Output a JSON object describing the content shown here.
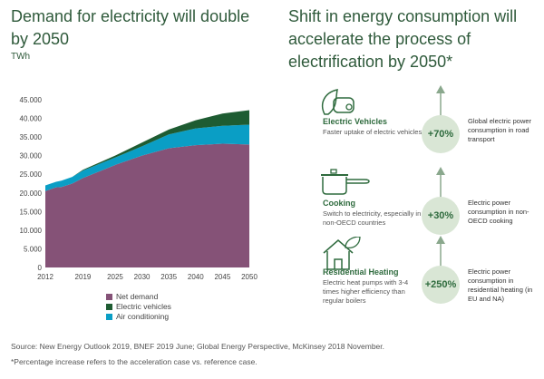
{
  "left_title": "Demand for electricity will double by 2050",
  "unit": "TWh",
  "right_title": "Shift in energy consumption will accelerate the process of electrification by 2050*",
  "chart_data": {
    "type": "area",
    "stacked": true,
    "title": "Demand for electricity will double by 2050",
    "ylabel": "TWh",
    "ylim": [
      0,
      45000
    ],
    "xlim": [
      2012,
      2050
    ],
    "y_ticks": [
      "0",
      "5.000",
      "10.000",
      "15.000",
      "20.000",
      "25.000",
      "30.000",
      "35.000",
      "40.000",
      "45.000"
    ],
    "x_ticks": [
      "2012",
      "2019",
      "2025",
      "2030",
      "2035",
      "2040",
      "2045",
      "2050"
    ],
    "grid": false,
    "legend": "bottom",
    "x": [
      2012,
      2014,
      2015,
      2017,
      2019,
      2025,
      2030,
      2035,
      2040,
      2045,
      2050
    ],
    "series": [
      {
        "name": "Net demand",
        "color": "#855277",
        "values": [
          20500,
          21500,
          21600,
          22500,
          24000,
          27500,
          30000,
          32000,
          32800,
          33200,
          33000
        ]
      },
      {
        "name": "Air conditioning",
        "color": "#0a9ec5",
        "values": [
          1500,
          1500,
          1700,
          1800,
          2000,
          2000,
          2500,
          3700,
          4500,
          4800,
          5300
        ]
      },
      {
        "name": "Electric vehicles",
        "color": "#1e5c32",
        "values": [
          0,
          0,
          0,
          0,
          200,
          500,
          1000,
          1300,
          2200,
          3300,
          3900
        ]
      }
    ],
    "legend_order": [
      "Net demand",
      "Electric vehicles",
      "Air conditioning"
    ]
  },
  "items": [
    {
      "icon": "electric-car-leaf-icon",
      "title": "Electric Vehicles",
      "desc": "Faster uptake of electric vehicles",
      "pct": "+70%",
      "note": "Global electric power consumption in road transport"
    },
    {
      "icon": "cooking-pot-icon",
      "title": "Cooking",
      "desc": "Switch to electricity, especially in non-OECD countries",
      "pct": "+30%",
      "note": "Electric power consumption in non-OECD cooking"
    },
    {
      "icon": "house-leaf-icon",
      "title": "Residential Heating",
      "desc": "Electric heat pumps with 3-4 times higher efficiency than regular boilers",
      "pct": "+250%",
      "note": "Electric power consumption in residential heating (in EU and NA)"
    }
  ],
  "source": "Source: New Energy Outlook 2019, BNEF 2019 June; Global Energy Perspective, McKinsey 2018 November.",
  "footnote": "*Percentage increase refers to the acceleration case vs. reference case.",
  "colors": {
    "title": "#2f5a3b",
    "accent": "#2f6b3e",
    "circle": "#d9e6d5"
  }
}
